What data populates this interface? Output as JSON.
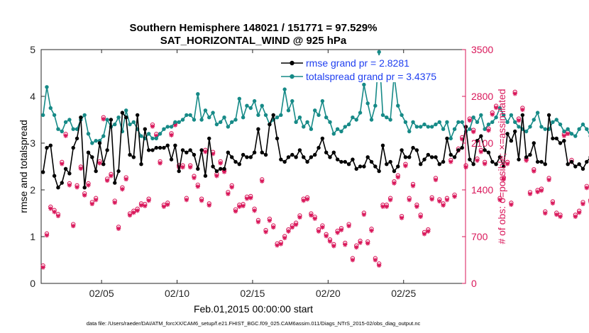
{
  "chart_data": {
    "type": "line",
    "title_line1": "Southern Hemisphere 148021 / 151771 = 97.529%",
    "title_line2": "SAT_HORIZONTAL_WIND @ 925 hPa",
    "xlabel": "Feb.01,2015 00:00:00 start",
    "ylabel_left": "rmse and totalspread",
    "ylabel_right": "# of obs: o=possible; ×=assimilated",
    "footnote": "data file: /Users/raeder/DAI/ATM_forcXX/CAM6_setup/f.e21.FHIST_BGC.f09_025.CAM6assim.011/Diags_NTrS_2015-02/obs_diag_output.nc",
    "x_ticks": [
      {
        "value": 5,
        "label": "02/05"
      },
      {
        "value": 10,
        "label": "02/10"
      },
      {
        "value": 15,
        "label": "02/15"
      },
      {
        "value": 20,
        "label": "02/20"
      },
      {
        "value": 25,
        "label": "02/25"
      }
    ],
    "xlim": [
      1.0,
      29.1
    ],
    "ylim_left": [
      0,
      5
    ],
    "left_ticks": [
      "0",
      "1",
      "2",
      "3",
      "4",
      "5"
    ],
    "ylim_right": [
      0,
      3500
    ],
    "right_ticks": [
      "0",
      "700",
      "1400",
      "2100",
      "2800",
      "3500"
    ],
    "colors": {
      "rmse": "#000000",
      "spread": "#168a87",
      "obs": "#d9175a",
      "legend_text": "#1f3ff0",
      "axis": "#262626"
    },
    "legend": [
      {
        "label": "rmse grand pr = 2.8281"
      },
      {
        "label": "totalspread grand pr = 3.4375"
      }
    ],
    "series": [
      {
        "name": "rmse",
        "x_start": 1.125,
        "x_step": 0.25,
        "values": [
          2.38,
          2.9,
          2.95,
          2.3,
          2.05,
          2.15,
          2.45,
          2.35,
          2.9,
          3.1,
          3.55,
          2.05,
          2.8,
          2.7,
          2.4,
          3.0,
          2.55,
          2.85,
          3.5,
          2.15,
          2.4,
          3.65,
          3.55,
          2.75,
          2.7,
          3.6,
          2.55,
          3.3,
          2.85,
          2.85,
          2.9,
          2.9,
          2.9,
          2.95,
          2.65,
          2.95,
          2.4,
          2.85,
          2.8,
          2.85,
          2.75,
          2.45,
          2.85,
          2.3,
          3.1,
          2.5,
          2.4,
          2.45,
          2.45,
          2.8,
          2.7,
          2.6,
          2.55,
          2.75,
          2.7,
          2.7,
          2.8,
          3.3,
          2.8,
          2.75,
          3.4,
          3.6,
          3.1,
          2.65,
          2.6,
          2.7,
          2.75,
          2.7,
          2.85,
          2.7,
          2.6,
          2.7,
          2.75,
          2.9,
          3.1,
          2.8,
          2.7,
          2.8,
          2.65,
          2.6,
          2.6,
          2.55,
          2.65,
          2.45,
          2.5,
          2.5,
          2.7,
          2.6,
          2.5,
          2.4,
          2.95,
          2.55,
          2.6,
          2.4,
          2.5,
          2.85,
          2.7,
          2.7,
          2.9,
          2.85,
          2.55,
          2.65,
          2.75,
          2.7,
          2.7,
          2.55,
          2.6,
          3.1,
          2.75,
          2.7,
          2.85,
          2.9,
          3.35,
          2.65,
          2.55,
          3.05,
          3.15,
          2.85,
          2.8,
          2.6,
          2.55,
          2.7,
          2.5,
          3.2,
          3.05,
          3.25,
          2.65,
          3.6,
          2.7,
          2.75,
          3.0,
          2.6,
          2.6,
          2.55,
          3.6,
          3.1,
          3.1,
          3.0,
          3.05,
          2.55,
          2.6,
          2.5,
          2.55,
          2.45,
          2.6,
          2.7,
          2.45,
          2.4
        ]
      },
      {
        "name": "totalspread",
        "x_start": 1.125,
        "x_step": 0.25,
        "values": [
          3.6,
          4.2,
          3.75,
          3.6,
          3.3,
          3.25,
          3.45,
          3.5,
          3.3,
          3.3,
          3.5,
          3.6,
          3.2,
          3.0,
          3.05,
          3.05,
          3.15,
          3.5,
          3.35,
          3.4,
          3.55,
          3.25,
          3.7,
          3.4,
          3.45,
          3.3,
          3.15,
          3.1,
          3.2,
          3.1,
          3.1,
          3.2,
          3.3,
          3.35,
          3.35,
          3.45,
          3.45,
          3.5,
          3.6,
          3.6,
          3.5,
          4.05,
          3.5,
          3.7,
          3.55,
          3.65,
          3.4,
          3.45,
          3.55,
          3.35,
          3.45,
          3.5,
          3.95,
          3.55,
          3.8,
          3.75,
          3.9,
          3.6,
          3.8,
          3.6,
          3.4,
          3.5,
          3.55,
          3.6,
          4.15,
          3.7,
          3.9,
          3.45,
          3.55,
          3.35,
          3.45,
          3.3,
          3.7,
          3.6,
          3.9,
          3.55,
          3.45,
          3.2,
          3.3,
          3.25,
          3.35,
          3.4,
          3.55,
          3.5,
          3.65,
          4.25,
          3.85,
          3.5,
          3.8,
          4.95,
          3.6,
          3.55,
          3.5,
          4.45,
          3.8,
          3.6,
          3.45,
          3.25,
          3.45,
          3.35,
          3.35,
          3.4,
          3.35,
          3.35,
          3.4,
          3.45,
          3.3,
          3.45,
          3.1,
          3.3,
          3.45,
          3.45,
          3.25,
          3.3,
          3.55,
          3.45,
          3.6,
          3.3,
          3.4,
          3.45,
          3.55,
          3.75,
          3.6,
          3.45,
          3.6,
          3.45,
          3.35,
          3.3,
          3.25,
          3.35,
          3.5,
          3.65,
          3.35,
          3.3,
          3.3,
          3.45,
          3.5,
          3.4,
          3.25,
          3.3,
          3.2,
          3.15,
          3.3,
          3.4,
          3.3,
          3.15,
          3.35,
          3.45
        ]
      },
      {
        "name": "obs",
        "x_start": 1.125,
        "x_step": 0.25,
        "values": [
          250,
          730,
          1130,
          1080,
          1020,
          1800,
          2220,
          1480,
          870,
          1450,
          1730,
          1330,
          1480,
          1200,
          1260,
          1810,
          2470,
          1550,
          1620,
          1220,
          830,
          1420,
          1570,
          1030,
          1070,
          1100,
          1180,
          1170,
          1250,
          2360,
          2220,
          1810,
          1160,
          1190,
          2230,
          2380,
          1750,
          1750,
          1260,
          1750,
          1590,
          1460,
          1250,
          1980,
          1180,
          1950,
          1620,
          1810,
          1680,
          1350,
          1450,
          1090,
          1160,
          1170,
          1280,
          1290,
          1100,
          930,
          1540,
          780,
          950,
          850,
          580,
          600,
          690,
          790,
          850,
          890,
          1000,
          1250,
          1270,
          1030,
          980,
          790,
          850,
          720,
          640,
          570,
          770,
          810,
          590,
          870,
          360,
          550,
          620,
          1040,
          610,
          800,
          360,
          280,
          1160,
          1160,
          1260,
          1510,
          1600,
          990,
          1770,
          1260,
          1470,
          1160,
          1010,
          750,
          790,
          1270,
          1560,
          1240,
          1180,
          1260,
          1830,
          1310,
          2000,
          2170,
          1750,
          2450,
          2280,
          1850,
          1980,
          1800,
          2300,
          2540,
          2640,
          1260,
          1570,
          1800,
          1190,
          2850,
          2450,
          2610,
          1850,
          1350,
          1690,
          1380,
          1400,
          1060,
          1560,
          1210,
          1040,
          1010,
          2220,
          2250,
          1830,
          1010,
          1070,
          1200,
          1440,
          1230,
          1400,
          1010,
          1060,
          1120,
          1080,
          720
        ]
      }
    ]
  }
}
